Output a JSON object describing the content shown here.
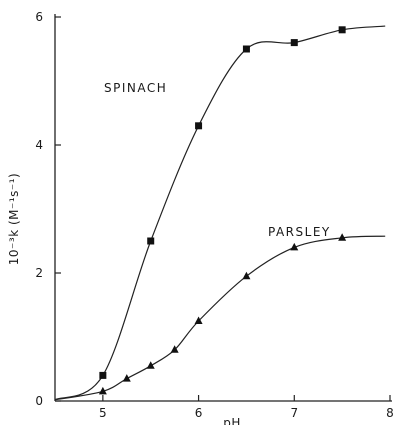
{
  "chart_data": {
    "type": "scatter",
    "xlabel": "pH",
    "ylabel": "10⁻³k (M⁻¹s⁻¹)",
    "xlim": [
      4.5,
      8
    ],
    "ylim": [
      0,
      6
    ],
    "xticks": [
      5,
      6,
      7,
      8
    ],
    "yticks": [
      0,
      2,
      4,
      6
    ],
    "grid": false,
    "series": [
      {
        "name": "SPINACH",
        "marker": "square",
        "x": [
          5.0,
          5.5,
          6.0,
          6.5,
          7.0,
          7.5
        ],
        "y": [
          0.4,
          2.5,
          4.3,
          5.5,
          5.6,
          5.8
        ]
      },
      {
        "name": "PARSLEY",
        "marker": "triangle",
        "x": [
          5.0,
          5.25,
          5.5,
          5.75,
          6.0,
          6.5,
          7.0,
          7.5
        ],
        "y": [
          0.15,
          0.35,
          0.55,
          0.8,
          1.25,
          1.95,
          2.4,
          2.55
        ]
      }
    ]
  }
}
